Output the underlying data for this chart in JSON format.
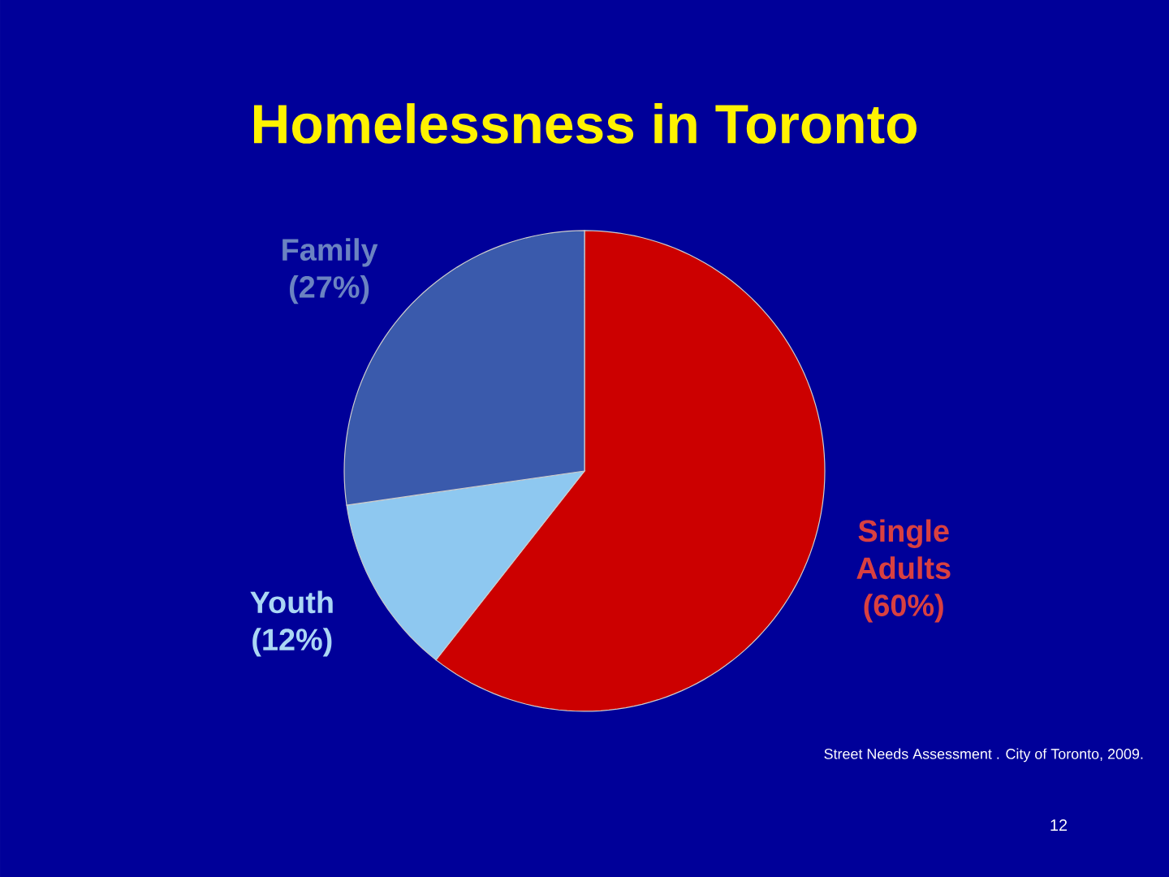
{
  "chart_data": {
    "type": "pie",
    "title": "Homelessness in Toronto",
    "categories": [
      "Single Adults",
      "Youth",
      "Family"
    ],
    "values": [
      60,
      12,
      27
    ],
    "value_labels": [
      "(60%)",
      "(12%)",
      "(27%)"
    ],
    "colors": [
      "#cc0000",
      "#8ec8f0",
      "#3a5aac"
    ],
    "annotations": [
      "Street Needs Assessment . City of Toronto, 2009.",
      "12"
    ]
  }
}
